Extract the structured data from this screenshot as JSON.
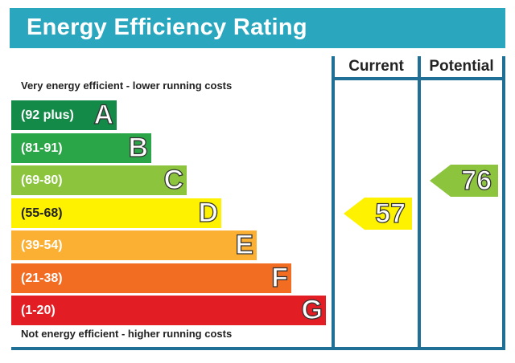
{
  "title": "Energy Efficiency Rating",
  "columns": {
    "current": "Current",
    "potential": "Potential"
  },
  "top_note": "Very energy efficient - lower running costs",
  "bottom_note": "Not energy efficient - higher running costs",
  "bands": [
    {
      "range": "(92 plus)",
      "letter": "A",
      "color": "#138a47"
    },
    {
      "range": "(81-91)",
      "letter": "B",
      "color": "#2aa548"
    },
    {
      "range": "(69-80)",
      "letter": "C",
      "color": "#8cc43e"
    },
    {
      "range": "(55-68)",
      "letter": "D",
      "color": "#fef200"
    },
    {
      "range": "(39-54)",
      "letter": "E",
      "color": "#fbb034"
    },
    {
      "range": "(21-38)",
      "letter": "F",
      "color": "#f26c22"
    },
    {
      "range": "(1-20)",
      "letter": "G",
      "color": "#e31d24"
    }
  ],
  "ratings": {
    "current": {
      "value": "57",
      "band": "D",
      "color": "#fef200"
    },
    "potential": {
      "value": "76",
      "band": "C",
      "color": "#8cc43e"
    }
  }
}
